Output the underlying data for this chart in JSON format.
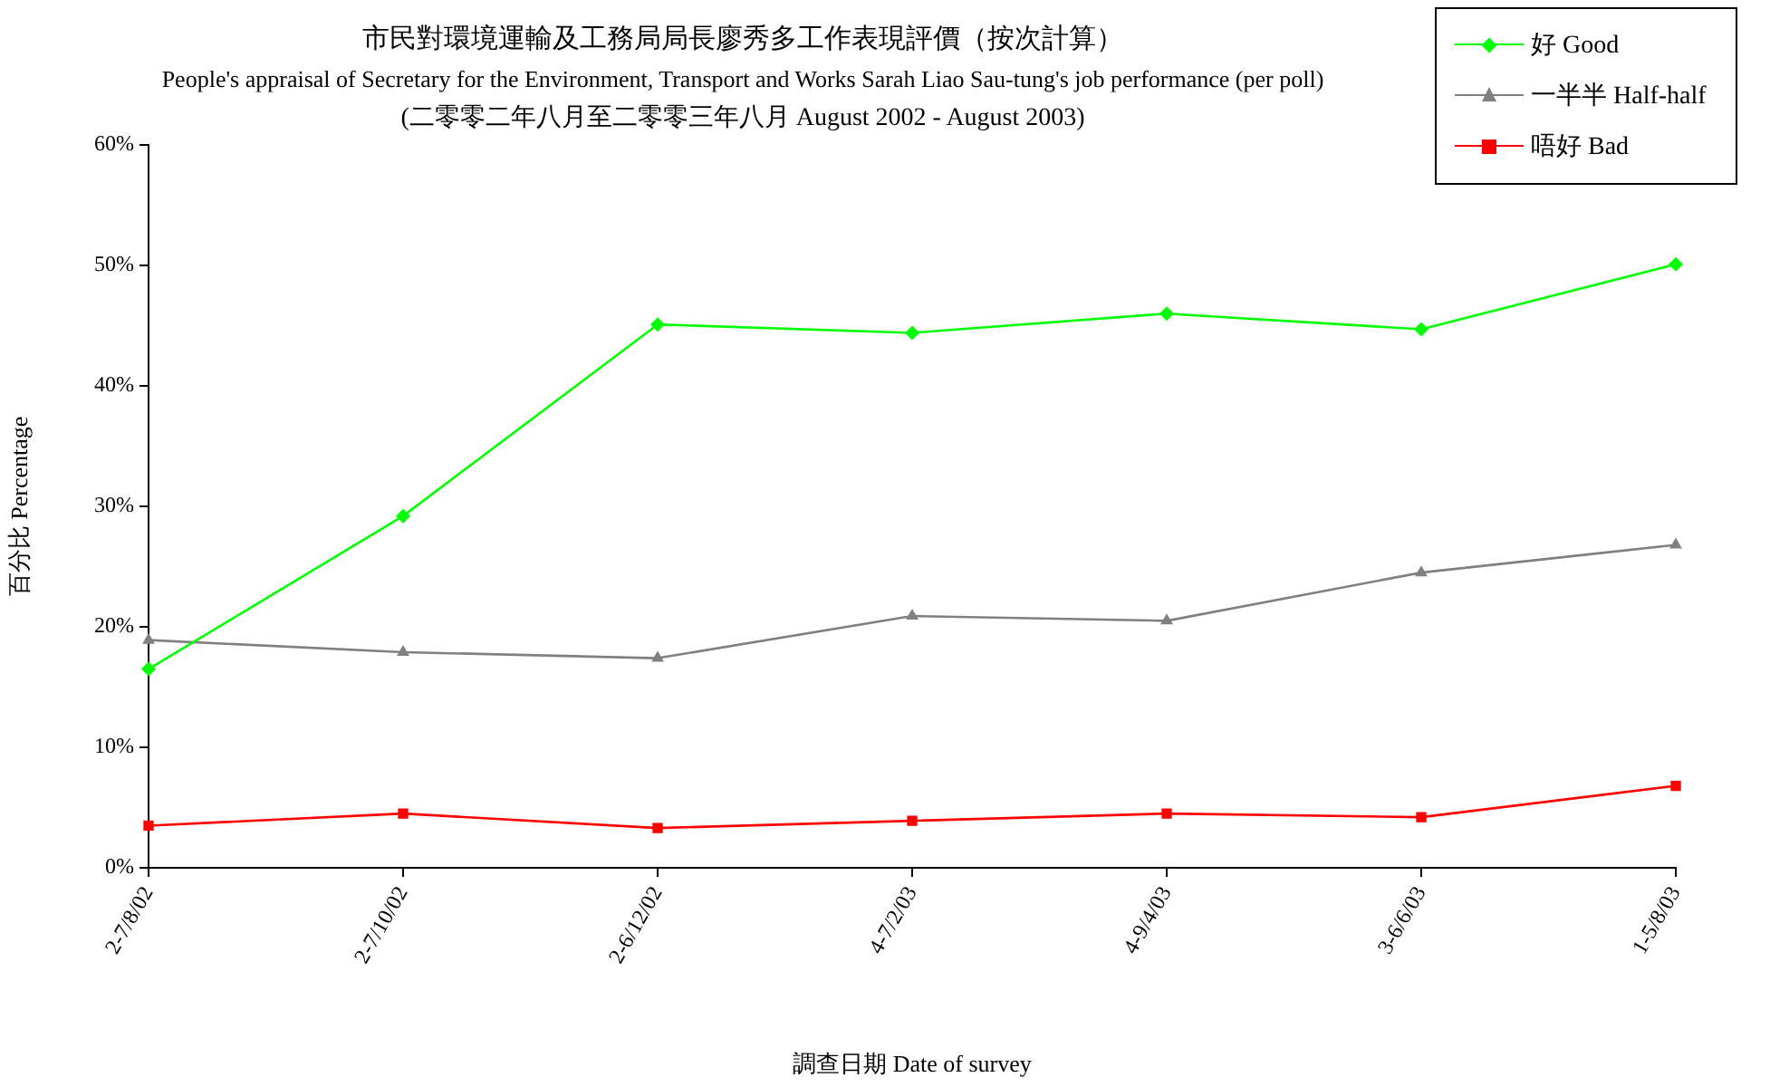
{
  "chart_data": {
    "type": "line",
    "title": "市民對環境運輸及工務局局長廖秀多工作表現評價（按次計算）",
    "subtitle": "People's appraisal of Secretary for the Environment, Transport and Works Sarah Liao Sau-tung's job performance (per poll)",
    "annotations": [
      "(二零零二年八月至二零零三年八月 August 2002 - August 2003)"
    ],
    "xlabel": "調查日期 Date of survey",
    "ylabel": "百分比 Percentage",
    "categories": [
      "2-7/8/02",
      "2-7/10/02",
      "2-6/12/02",
      "4-7/2/03",
      "4-9/4/03",
      "3-6/6/03",
      "1-5/8/03"
    ],
    "series": [
      {
        "name": "好 Good",
        "color": "#00ff00",
        "marker": "diamond",
        "values": [
          16.5,
          29.2,
          45.1,
          44.4,
          46.0,
          44.7,
          50.1
        ]
      },
      {
        "name": "一半半 Half-half",
        "color": "#808080",
        "marker": "triangle",
        "values": [
          18.9,
          17.9,
          17.4,
          20.9,
          20.5,
          24.5,
          26.8
        ]
      },
      {
        "name": "唔好 Bad",
        "color": "#ff0000",
        "marker": "square",
        "values": [
          3.5,
          4.5,
          3.3,
          3.9,
          4.5,
          4.2,
          6.8
        ]
      }
    ],
    "ylim": [
      0,
      60
    ],
    "yticks": [
      {
        "value": 0,
        "label": "0%"
      },
      {
        "value": 10,
        "label": "10%"
      },
      {
        "value": 20,
        "label": "20%"
      },
      {
        "value": 30,
        "label": "30%"
      },
      {
        "value": 40,
        "label": "40%"
      },
      {
        "value": 50,
        "label": "50%"
      },
      {
        "value": 60,
        "label": "60%"
      }
    ],
    "grid": false,
    "legend": "top right",
    "line_style": "solid"
  }
}
